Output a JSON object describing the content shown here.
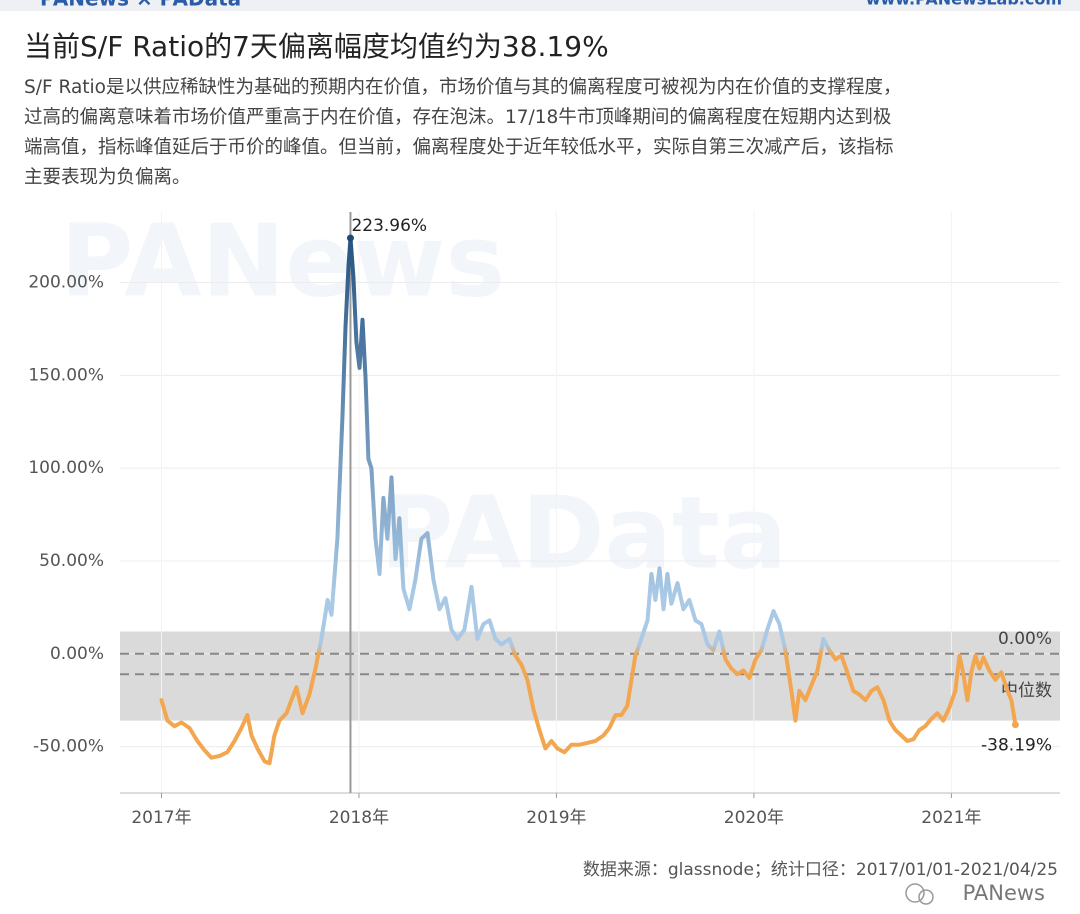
{
  "header": {
    "logo": "PANews × PAData",
    "site": "www.PANewsLab.com"
  },
  "chart_data": {
    "type": "line",
    "title": "当前S/F Ratio的7天偏离幅度均值约为38.19%",
    "description": [
      "S/F Ratio是以供应稀缺性为基础的预期内在价值，市场价值与其的偏离程度可被视为内在价值的支撑程度，",
      "过高的偏离意味着市场价值严重高于内在价值，存在泡沫。17/18牛市顶峰期间的偏离程度在短期内达到极",
      "端高值，指标峰值延后于币价的峰值。但当前，偏离程度处于近年较低水平，实际自第三次减产后，该指标",
      "主要表现为负偏离。"
    ],
    "source": "数据来源：glassnode；统计口径：2017/01/01-2021/04/25",
    "brand": "PANews",
    "watermarks": [
      "PANews",
      "PAData"
    ],
    "x": [
      2017.0,
      2017.03,
      2017.066,
      2017.101,
      2017.142,
      2017.182,
      2017.218,
      2017.253,
      2017.294,
      2017.334,
      2017.37,
      2017.405,
      2017.435,
      2017.456,
      2017.486,
      2017.522,
      2017.547,
      2017.572,
      2017.597,
      2017.633,
      2017.658,
      2017.684,
      2017.714,
      2017.749,
      2017.78,
      2017.81,
      2017.841,
      2017.861,
      2017.891,
      2017.916,
      2017.932,
      2017.947,
      2017.957,
      2017.972,
      2017.987,
      2018.003,
      2018.018,
      2018.033,
      2018.048,
      2018.063,
      2018.084,
      2018.104,
      2018.124,
      2018.144,
      2018.165,
      2018.185,
      2018.205,
      2018.225,
      2018.256,
      2018.286,
      2018.316,
      2018.347,
      2018.377,
      2018.408,
      2018.438,
      2018.468,
      2018.499,
      2018.534,
      2018.57,
      2018.6,
      2018.63,
      2018.661,
      2018.691,
      2018.722,
      2018.762,
      2018.792,
      2018.823,
      2018.853,
      2018.884,
      2018.914,
      2018.944,
      2018.975,
      2019.005,
      2019.041,
      2019.076,
      2019.116,
      2019.157,
      2019.197,
      2019.238,
      2019.268,
      2019.299,
      2019.329,
      2019.359,
      2019.38,
      2019.4,
      2019.43,
      2019.461,
      2019.481,
      2019.501,
      2019.522,
      2019.542,
      2019.562,
      2019.582,
      2019.613,
      2019.643,
      2019.673,
      2019.704,
      2019.734,
      2019.765,
      2019.795,
      2019.825,
      2019.856,
      2019.886,
      2019.916,
      2019.947,
      2019.977,
      2020.008,
      2020.038,
      2020.068,
      2020.099,
      2020.129,
      2020.159,
      2020.19,
      2020.21,
      2020.23,
      2020.261,
      2020.291,
      2020.322,
      2020.352,
      2020.382,
      2020.413,
      2020.443,
      2020.473,
      2020.504,
      2020.534,
      2020.565,
      2020.595,
      2020.625,
      2020.656,
      2020.686,
      2020.716,
      2020.747,
      2020.777,
      2020.808,
      2020.838,
      2020.868,
      2020.899,
      2020.929,
      2020.959,
      2020.99,
      2021.02,
      2021.041,
      2021.061,
      2021.081,
      2021.101,
      2021.122,
      2021.142,
      2021.162,
      2021.192,
      2021.223,
      2021.253,
      2021.284,
      2021.304,
      2021.324
    ],
    "values": [
      -25,
      -36,
      -39,
      -37,
      -40,
      -47,
      -52,
      -56,
      -55,
      -53,
      -47,
      -40,
      -33,
      -44,
      -51,
      -58,
      -59,
      -44,
      -36,
      -32,
      -25,
      -18,
      -32,
      -22,
      -8,
      8,
      29,
      21,
      62,
      127,
      176,
      209,
      223.96,
      203,
      168,
      154,
      180,
      149,
      105,
      100,
      62,
      43,
      84,
      62,
      95,
      51,
      73,
      35,
      24,
      40,
      62,
      65,
      40,
      24,
      30,
      13,
      8,
      13,
      36,
      8,
      16,
      18,
      8,
      5,
      8,
      -1,
      -6,
      -14,
      -30,
      -41,
      -51,
      -47,
      -51,
      -53,
      -49,
      -49,
      -48,
      -47,
      -44,
      -40,
      -33,
      -33,
      -28,
      -14,
      -1,
      8,
      18,
      43,
      29,
      46,
      24,
      43,
      27,
      38,
      24,
      29,
      18,
      16,
      5,
      2,
      12,
      -3,
      -8,
      -11,
      -9,
      -13,
      -3,
      2,
      13,
      23,
      16,
      2,
      -20,
      -36,
      -20,
      -25,
      -17,
      -9,
      8,
      2,
      -3,
      -1,
      -10,
      -20,
      -22,
      -25,
      -20,
      -18,
      -25,
      -36,
      -41,
      -44,
      -47,
      -46,
      -41,
      -39,
      -35,
      -32,
      -36,
      -29,
      -20,
      -1,
      -11,
      -25,
      -10,
      -1,
      -8,
      -2,
      -9,
      -14,
      -10,
      -20,
      -25,
      -38.19
    ],
    "colors": [
      "#f2a650",
      "#a9c9e6",
      "#1b4b7a"
    ],
    "xlim": [
      2016.79,
      2021.55
    ],
    "xticks": [
      {
        "value": 2017,
        "label": "2017年"
      },
      {
        "value": 2018,
        "label": "2018年"
      },
      {
        "value": 2019,
        "label": "2019年"
      },
      {
        "value": 2020,
        "label": "2020年"
      },
      {
        "value": 2021,
        "label": "2021年"
      }
    ],
    "ylim": [
      -75,
      238
    ],
    "yticks": [
      {
        "value": -50,
        "label": "-50.00%"
      },
      {
        "value": 0,
        "label": "0.00%"
      },
      {
        "value": 50,
        "label": "50.00%"
      },
      {
        "value": 100,
        "label": "100.00%"
      },
      {
        "value": 150,
        "label": "150.00%"
      },
      {
        "value": 200,
        "label": "200.00%"
      }
    ],
    "grid": true,
    "band": [
      -36,
      12
    ],
    "reference_lines": [
      {
        "value": 0,
        "label": "0.00%"
      },
      {
        "value": -11,
        "label": "中位数"
      }
    ],
    "annotations": [
      {
        "x": 2017.957,
        "value": 223.96,
        "label": "223.96%"
      },
      {
        "x": 2021.324,
        "value": -38.19,
        "label": "-38.19%"
      }
    ]
  }
}
